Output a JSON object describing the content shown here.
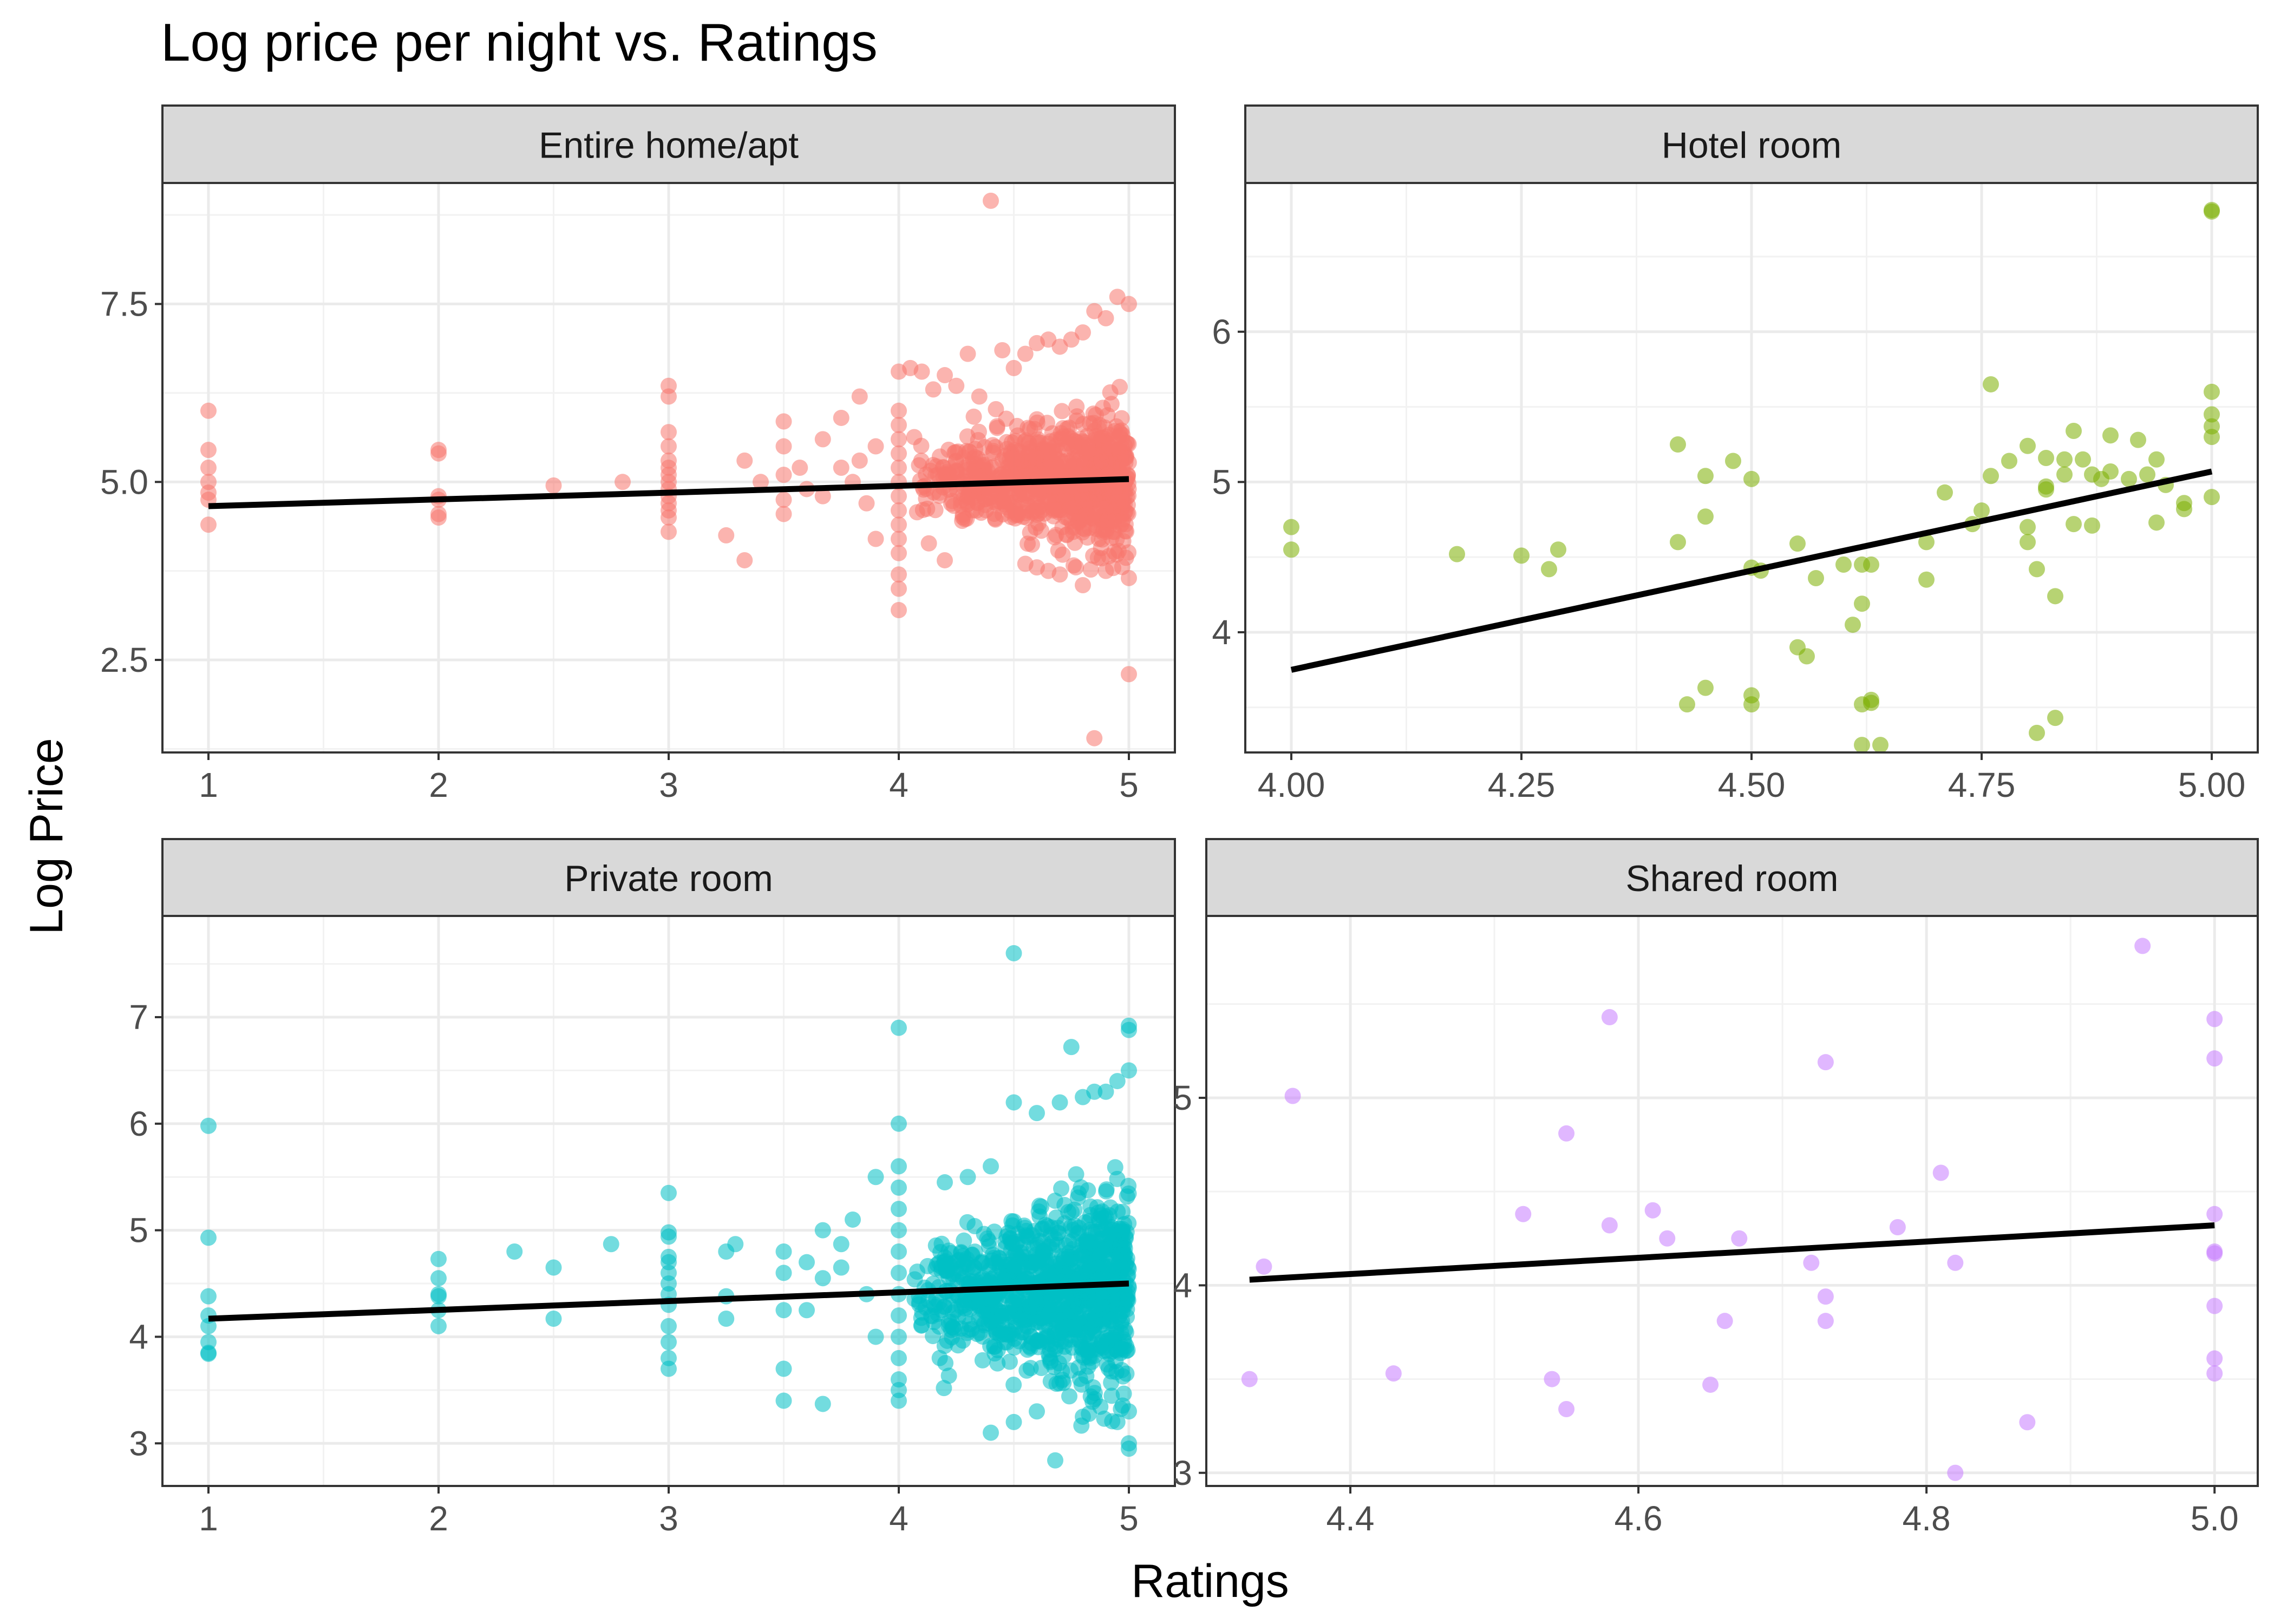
{
  "title": "Log price per night vs. Ratings",
  "xlabel": "Ratings",
  "ylabel": "Log Price",
  "chart_data": [
    {
      "type": "scatter",
      "panel": "Entire home/apt",
      "color": "#F8766D",
      "xlim": [
        0.8,
        5.2
      ],
      "ylim": [
        1.2,
        9.2
      ],
      "xticks": [
        1,
        2,
        3,
        4,
        5
      ],
      "xtick_labels": [
        "1",
        "2",
        "3",
        "4",
        "5"
      ],
      "yticks": [
        2.5,
        5.0,
        7.5
      ],
      "ytick_labels": [
        "2.5",
        "5.0",
        "7.5"
      ],
      "fit": {
        "x": [
          1,
          5
        ],
        "y": [
          4.66,
          5.04
        ]
      },
      "dense_clusters": [
        {
          "x_range": [
            4.05,
            5.0
          ],
          "y_mean": 5.0,
          "y_spread": 0.55,
          "n": 900
        }
      ],
      "points": [
        [
          1,
          6.0
        ],
        [
          1,
          5.45
        ],
        [
          1,
          5.2
        ],
        [
          1,
          5.0
        ],
        [
          1,
          4.85
        ],
        [
          1,
          4.75
        ],
        [
          1,
          4.4
        ],
        [
          2,
          5.45
        ],
        [
          2,
          5.4
        ],
        [
          2,
          4.8
        ],
        [
          2,
          4.75
        ],
        [
          2,
          4.55
        ],
        [
          2,
          4.5
        ],
        [
          2.5,
          4.95
        ],
        [
          2.8,
          5.0
        ],
        [
          3,
          6.35
        ],
        [
          3,
          6.2
        ],
        [
          3,
          5.7
        ],
        [
          3,
          5.5
        ],
        [
          3,
          5.3
        ],
        [
          3,
          5.2
        ],
        [
          3,
          5.1
        ],
        [
          3,
          5.0
        ],
        [
          3,
          4.9
        ],
        [
          3,
          4.8
        ],
        [
          3,
          4.7
        ],
        [
          3,
          4.6
        ],
        [
          3,
          4.5
        ],
        [
          3,
          4.3
        ],
        [
          3.25,
          4.25
        ],
        [
          3.33,
          3.9
        ],
        [
          3.33,
          5.3
        ],
        [
          3.4,
          5.0
        ],
        [
          3.5,
          5.85
        ],
        [
          3.5,
          5.5
        ],
        [
          3.5,
          5.1
        ],
        [
          3.5,
          4.75
        ],
        [
          3.5,
          4.55
        ],
        [
          3.57,
          5.2
        ],
        [
          3.6,
          4.9
        ],
        [
          3.67,
          5.6
        ],
        [
          3.67,
          4.8
        ],
        [
          3.75,
          5.9
        ],
        [
          3.75,
          5.2
        ],
        [
          3.8,
          5.0
        ],
        [
          3.83,
          6.2
        ],
        [
          3.83,
          5.3
        ],
        [
          3.86,
          4.7
        ],
        [
          3.9,
          4.2
        ],
        [
          3.9,
          5.5
        ],
        [
          4,
          6.55
        ],
        [
          4,
          6.0
        ],
        [
          4,
          5.8
        ],
        [
          4,
          5.6
        ],
        [
          4,
          5.4
        ],
        [
          4,
          5.2
        ],
        [
          4,
          5.0
        ],
        [
          4,
          4.8
        ],
        [
          4,
          4.6
        ],
        [
          4,
          4.4
        ],
        [
          4,
          4.2
        ],
        [
          4,
          4.0
        ],
        [
          4,
          3.7
        ],
        [
          4,
          3.5
        ],
        [
          4,
          3.2
        ],
        [
          4.05,
          6.6
        ],
        [
          4.1,
          6.55
        ],
        [
          4.15,
          6.3
        ],
        [
          4.2,
          6.5
        ],
        [
          4.25,
          6.35
        ],
        [
          4.3,
          6.8
        ],
        [
          4.35,
          6.2
        ],
        [
          4.4,
          8.95
        ],
        [
          4.45,
          6.85
        ],
        [
          4.5,
          6.6
        ],
        [
          4.55,
          6.8
        ],
        [
          4.6,
          6.95
        ],
        [
          4.65,
          7.0
        ],
        [
          4.7,
          6.9
        ],
        [
          4.75,
          7.0
        ],
        [
          4.8,
          7.1
        ],
        [
          4.85,
          7.4
        ],
        [
          4.9,
          7.3
        ],
        [
          4.95,
          7.6
        ],
        [
          5,
          7.5
        ],
        [
          4.6,
          3.8
        ],
        [
          4.65,
          3.75
        ],
        [
          4.7,
          3.7
        ],
        [
          4.8,
          3.55
        ],
        [
          4.9,
          3.75
        ],
        [
          5,
          3.65
        ],
        [
          4.55,
          3.85
        ],
        [
          4.2,
          3.9
        ],
        [
          4.85,
          1.4
        ],
        [
          5,
          2.3
        ]
      ]
    },
    {
      "type": "scatter",
      "panel": "Hotel room",
      "color": "#7CAE00",
      "xlim": [
        3.95,
        5.05
      ],
      "ylim": [
        3.2,
        6.99
      ],
      "xticks": [
        4.0,
        4.25,
        4.5,
        4.75,
        5.0
      ],
      "xtick_labels": [
        "4.00",
        "4.25",
        "4.50",
        "4.75",
        "5.00"
      ],
      "yticks": [
        4,
        5,
        6
      ],
      "ytick_labels": [
        "4",
        "5",
        "6"
      ],
      "fit": {
        "x": [
          4.0,
          5.0
        ],
        "y": [
          3.75,
          5.07
        ]
      },
      "dense_clusters": [],
      "points": [
        [
          4.0,
          4.7
        ],
        [
          4.0,
          4.55
        ],
        [
          4.18,
          4.52
        ],
        [
          4.25,
          4.51
        ],
        [
          4.28,
          4.42
        ],
        [
          4.29,
          4.55
        ],
        [
          4.42,
          5.25
        ],
        [
          4.42,
          4.6
        ],
        [
          4.43,
          3.52
        ],
        [
          4.45,
          5.04
        ],
        [
          4.45,
          4.77
        ],
        [
          4.45,
          3.63
        ],
        [
          4.48,
          5.14
        ],
        [
          4.5,
          5.02
        ],
        [
          4.5,
          4.43
        ],
        [
          4.5,
          3.58
        ],
        [
          4.5,
          3.52
        ],
        [
          4.51,
          4.41
        ],
        [
          4.55,
          4.59
        ],
        [
          4.55,
          3.9
        ],
        [
          4.56,
          3.84
        ],
        [
          4.57,
          4.36
        ],
        [
          4.6,
          4.45
        ],
        [
          4.61,
          4.05
        ],
        [
          4.62,
          4.45
        ],
        [
          4.62,
          4.19
        ],
        [
          4.62,
          3.52
        ],
        [
          4.62,
          3.25
        ],
        [
          4.63,
          4.45
        ],
        [
          4.63,
          3.55
        ],
        [
          4.63,
          3.53
        ],
        [
          4.64,
          3.25
        ],
        [
          4.69,
          4.6
        ],
        [
          4.69,
          4.35
        ],
        [
          4.71,
          4.93
        ],
        [
          4.74,
          4.72
        ],
        [
          4.75,
          4.81
        ],
        [
          4.76,
          5.65
        ],
        [
          4.76,
          5.04
        ],
        [
          4.78,
          5.14
        ],
        [
          4.8,
          5.24
        ],
        [
          4.8,
          4.7
        ],
        [
          4.8,
          4.6
        ],
        [
          4.81,
          4.42
        ],
        [
          4.81,
          3.33
        ],
        [
          4.82,
          5.16
        ],
        [
          4.82,
          4.97
        ],
        [
          4.82,
          4.95
        ],
        [
          4.83,
          4.24
        ],
        [
          4.83,
          3.43
        ],
        [
          4.84,
          5.15
        ],
        [
          4.84,
          5.05
        ],
        [
          4.85,
          5.34
        ],
        [
          4.85,
          4.72
        ],
        [
          4.86,
          5.15
        ],
        [
          4.87,
          5.05
        ],
        [
          4.87,
          4.71
        ],
        [
          4.88,
          5.02
        ],
        [
          4.89,
          5.07
        ],
        [
          4.89,
          5.31
        ],
        [
          4.91,
          5.02
        ],
        [
          4.92,
          5.28
        ],
        [
          4.93,
          5.05
        ],
        [
          4.94,
          5.15
        ],
        [
          4.94,
          4.73
        ],
        [
          4.95,
          4.98
        ],
        [
          4.97,
          4.86
        ],
        [
          4.97,
          4.82
        ],
        [
          5.0,
          6.8
        ],
        [
          5.0,
          6.81
        ],
        [
          5.0,
          5.6
        ],
        [
          5.0,
          5.45
        ],
        [
          5.0,
          5.37
        ],
        [
          5.0,
          5.3
        ],
        [
          5.0,
          4.9
        ]
      ]
    },
    {
      "type": "scatter",
      "panel": "Private room",
      "color": "#00BFC4",
      "xlim": [
        0.8,
        5.2
      ],
      "ylim": [
        2.6,
        7.95
      ],
      "xticks": [
        1,
        2,
        3,
        4,
        5
      ],
      "xtick_labels": [
        "1",
        "2",
        "3",
        "4",
        "5"
      ],
      "yticks": [
        3,
        4,
        5,
        6,
        7
      ],
      "ytick_labels": [
        "3",
        "4",
        "5",
        "6",
        "7"
      ],
      "fit": {
        "x": [
          1,
          5
        ],
        "y": [
          4.17,
          4.5
        ]
      },
      "dense_clusters": [
        {
          "x_range": [
            4.05,
            5.0
          ],
          "y_mean": 4.4,
          "y_spread": 0.55,
          "n": 1000
        }
      ],
      "points": [
        [
          1,
          5.98
        ],
        [
          1,
          4.93
        ],
        [
          1,
          4.38
        ],
        [
          1,
          4.2
        ],
        [
          1,
          4.1
        ],
        [
          1,
          3.95
        ],
        [
          1,
          3.85
        ],
        [
          1,
          3.84
        ],
        [
          2,
          4.73
        ],
        [
          2,
          4.55
        ],
        [
          2,
          4.4
        ],
        [
          2,
          4.38
        ],
        [
          2,
          4.25
        ],
        [
          2,
          4.1
        ],
        [
          2.33,
          4.8
        ],
        [
          2.5,
          4.65
        ],
        [
          2.5,
          4.17
        ],
        [
          2.75,
          4.87
        ],
        [
          3,
          5.35
        ],
        [
          3,
          4.98
        ],
        [
          3,
          4.94
        ],
        [
          3,
          4.75
        ],
        [
          3,
          4.7
        ],
        [
          3,
          4.6
        ],
        [
          3,
          4.5
        ],
        [
          3,
          4.4
        ],
        [
          3,
          4.3
        ],
        [
          3,
          4.1
        ],
        [
          3,
          3.95
        ],
        [
          3,
          3.8
        ],
        [
          3,
          3.7
        ],
        [
          3.25,
          4.8
        ],
        [
          3.25,
          4.38
        ],
        [
          3.25,
          4.17
        ],
        [
          3.29,
          4.87
        ],
        [
          3.5,
          4.8
        ],
        [
          3.5,
          4.6
        ],
        [
          3.5,
          4.25
        ],
        [
          3.5,
          3.7
        ],
        [
          3.5,
          3.4
        ],
        [
          3.6,
          4.7
        ],
        [
          3.6,
          4.25
        ],
        [
          3.67,
          5.0
        ],
        [
          3.67,
          4.55
        ],
        [
          3.67,
          3.37
        ],
        [
          3.75,
          4.65
        ],
        [
          3.75,
          4.87
        ],
        [
          3.8,
          5.1
        ],
        [
          3.86,
          4.4
        ],
        [
          3.9,
          5.5
        ],
        [
          3.9,
          4.0
        ],
        [
          4,
          6.9
        ],
        [
          4,
          6.0
        ],
        [
          4,
          5.6
        ],
        [
          4,
          5.4
        ],
        [
          4,
          5.2
        ],
        [
          4,
          5.0
        ],
        [
          4,
          4.8
        ],
        [
          4,
          4.6
        ],
        [
          4,
          4.4
        ],
        [
          4,
          4.2
        ],
        [
          4,
          4.0
        ],
        [
          4,
          3.8
        ],
        [
          4,
          3.6
        ],
        [
          4,
          3.5
        ],
        [
          4,
          3.4
        ],
        [
          4.2,
          5.45
        ],
        [
          4.3,
          5.5
        ],
        [
          4.4,
          5.6
        ],
        [
          4.5,
          6.2
        ],
        [
          4.5,
          7.6
        ],
        [
          4.6,
          6.1
        ],
        [
          4.7,
          6.2
        ],
        [
          4.75,
          6.72
        ],
        [
          4.8,
          6.25
        ],
        [
          4.85,
          6.3
        ],
        [
          4.9,
          6.3
        ],
        [
          4.95,
          6.4
        ],
        [
          5,
          6.92
        ],
        [
          5,
          6.88
        ],
        [
          5,
          6.5
        ],
        [
          4.4,
          3.1
        ],
        [
          4.5,
          3.2
        ],
        [
          4.6,
          3.3
        ],
        [
          4.68,
          2.84
        ],
        [
          4.8,
          3.25
        ],
        [
          4.95,
          3.2
        ],
        [
          5,
          2.95
        ],
        [
          5,
          3.0
        ],
        [
          5,
          3.3
        ]
      ]
    },
    {
      "type": "scatter",
      "panel": "Shared room",
      "color": "#C77CFF",
      "xlim": [
        4.3,
        5.03
      ],
      "ylim": [
        2.93,
        5.97
      ],
      "xticks": [
        4.4,
        4.6,
        4.8,
        5.0
      ],
      "xtick_labels": [
        "4.4",
        "4.6",
        "4.8",
        "5.0"
      ],
      "yticks": [
        3,
        4,
        5
      ],
      "ytick_labels": [
        "3",
        "4",
        "5"
      ],
      "fit": {
        "x": [
          4.33,
          5.0
        ],
        "y": [
          4.03,
          4.32
        ]
      },
      "dense_clusters": [],
      "points": [
        [
          4.33,
          3.5
        ],
        [
          4.34,
          4.1
        ],
        [
          4.36,
          5.01
        ],
        [
          4.43,
          3.53
        ],
        [
          4.52,
          4.38
        ],
        [
          4.54,
          3.5
        ],
        [
          4.55,
          4.81
        ],
        [
          4.55,
          3.34
        ],
        [
          4.58,
          5.43
        ],
        [
          4.58,
          4.32
        ],
        [
          4.61,
          4.4
        ],
        [
          4.62,
          4.25
        ],
        [
          4.65,
          3.47
        ],
        [
          4.66,
          3.81
        ],
        [
          4.67,
          4.25
        ],
        [
          4.72,
          4.12
        ],
        [
          4.73,
          5.19
        ],
        [
          4.73,
          3.94
        ],
        [
          4.73,
          3.81
        ],
        [
          4.78,
          4.31
        ],
        [
          4.81,
          4.6
        ],
        [
          4.82,
          4.12
        ],
        [
          4.82,
          3.0
        ],
        [
          4.87,
          3.27
        ],
        [
          4.95,
          5.81
        ],
        [
          5.0,
          5.42
        ],
        [
          5.0,
          5.21
        ],
        [
          5.0,
          4.38
        ],
        [
          5.0,
          4.18
        ],
        [
          5.0,
          4.17
        ],
        [
          5.0,
          3.89
        ],
        [
          5.0,
          3.61
        ],
        [
          5.0,
          3.53
        ]
      ]
    }
  ]
}
